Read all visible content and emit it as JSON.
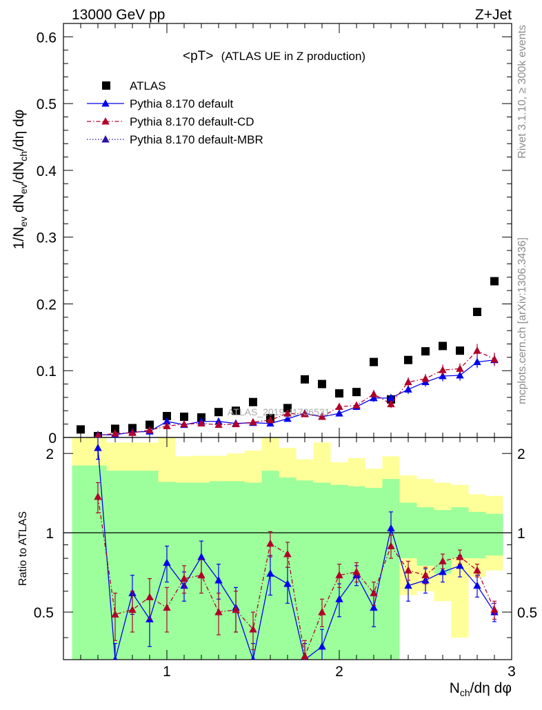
{
  "header": {
    "left_title": "13000 GeV pp",
    "right_title": "Z+Jet"
  },
  "side_labels": {
    "rivet": "Rivet 3.1.10, ≥ 300k events",
    "mcplots": "mcplots.cern.ch [arXiv:1306.3436]"
  },
  "watermark": "ATLAS_2019_I1736531",
  "chart_data": [
    {
      "type": "scatter",
      "panel": "main",
      "title": "<pT> (ATLAS UE in Z production)",
      "title_main": "<pT>",
      "title_sub": "(ATLAS UE in Z production)",
      "ylabel": "1/N_ev dN_ev/dN_ch/dη dφ",
      "xlim": [
        0.4,
        3.0
      ],
      "ylim": [
        0,
        0.62
      ],
      "yticks": [
        0,
        0.1,
        0.2,
        0.3,
        0.4,
        0.5,
        0.6
      ],
      "ytick_labels": [
        "0",
        "0.1",
        "0.2",
        "0.3",
        "0.4",
        "0.5",
        "0.6"
      ],
      "legend": [
        "ATLAS",
        "Pythia 8.170 default",
        "Pythia 8.170 default-CD",
        "Pythia 8.170 default-MBR"
      ],
      "x": [
        0.5,
        0.6,
        0.7,
        0.8,
        0.9,
        1.0,
        1.1,
        1.2,
        1.3,
        1.4,
        1.5,
        1.6,
        1.7,
        1.8,
        1.9,
        2.0,
        2.1,
        2.2,
        2.3,
        2.4,
        2.5,
        2.6,
        2.7,
        2.8,
        2.9
      ],
      "series": [
        {
          "name": "ATLAS",
          "color": "#000000",
          "marker": "square",
          "values": [
            0.012,
            0.002,
            0.013,
            0.014,
            0.019,
            0.032,
            0.031,
            0.03,
            0.038,
            0.04,
            0.053,
            0.029,
            0.044,
            0.087,
            0.08,
            0.066,
            0.068,
            0.113,
            0.057,
            0.116,
            0.129,
            0.137,
            0.13,
            0.188,
            0.234
          ]
        },
        {
          "name": "Pythia 8.170 default",
          "color": "#0000ee",
          "marker": "triangle",
          "line": "solid",
          "values": [
            null,
            0.004,
            0.004,
            0.008,
            0.009,
            0.024,
            0.019,
            0.024,
            0.024,
            0.021,
            0.022,
            0.021,
            0.028,
            0.036,
            0.031,
            0.036,
            0.046,
            0.059,
            0.059,
            0.072,
            0.083,
            0.092,
            0.093,
            0.113,
            0.116
          ]
        },
        {
          "name": "Pythia 8.170 default-CD",
          "color": "#b0002a",
          "marker": "triangle",
          "line": "dashdot",
          "values": [
            null,
            0.003,
            0.006,
            0.007,
            0.011,
            0.017,
            0.02,
            0.021,
            0.019,
            0.02,
            0.023,
            0.026,
            0.036,
            0.035,
            0.031,
            0.046,
            0.048,
            0.065,
            0.05,
            0.083,
            0.088,
            0.101,
            0.103,
            0.13,
            0.117
          ]
        },
        {
          "name": "Pythia 8.170 default-MBR",
          "color": "#2a10a8",
          "marker": "triangle",
          "line": "dotted",
          "values": []
        }
      ],
      "errors": {
        "Pythia 8.170 default": [
          null,
          0.002,
          0.002,
          0.002,
          0.002,
          0.004,
          0.003,
          0.003,
          0.003,
          0.003,
          0.003,
          0.003,
          0.003,
          0.004,
          0.004,
          0.004,
          0.005,
          0.006,
          0.006,
          0.007,
          0.007,
          0.008,
          0.008,
          0.009,
          0.009
        ],
        "Pythia 8.170 default-CD": [
          null,
          0.002,
          0.002,
          0.002,
          0.002,
          0.003,
          0.003,
          0.003,
          0.003,
          0.003,
          0.003,
          0.003,
          0.003,
          0.004,
          0.004,
          0.005,
          0.005,
          0.006,
          0.006,
          0.007,
          0.007,
          0.008,
          0.008,
          0.01,
          0.01
        ]
      }
    },
    {
      "type": "line",
      "panel": "ratio",
      "ylabel": "Ratio to ATLAS",
      "xlabel": "N_ch/dη dφ",
      "xlim": [
        0.4,
        3.0
      ],
      "ylim": [
        0.33,
        2.3
      ],
      "yticks": [
        0.5,
        1,
        2
      ],
      "ytick_labels": [
        "0.5",
        "1",
        "2"
      ],
      "xticks": [
        1,
        2,
        3
      ],
      "xtick_labels": [
        "1",
        "2",
        "3"
      ],
      "x": [
        0.5,
        0.6,
        0.7,
        0.8,
        0.9,
        1.0,
        1.1,
        1.2,
        1.3,
        1.4,
        1.5,
        1.6,
        1.7,
        1.8,
        1.9,
        2.0,
        2.1,
        2.2,
        2.3,
        2.4,
        2.5,
        2.6,
        2.7,
        2.8,
        2.9
      ],
      "band_edges": [
        0.45,
        0.55,
        0.65,
        0.75,
        0.85,
        0.95,
        1.05,
        1.15,
        1.25,
        1.35,
        1.45,
        1.55,
        1.65,
        1.75,
        1.85,
        1.95,
        2.05,
        2.15,
        2.25,
        2.35,
        2.45,
        2.55,
        2.65,
        2.75,
        2.85,
        2.95
      ],
      "bands": [
        {
          "name": "ATLAS total uncertainty",
          "color": "#ffff99",
          "lower": [
            0.33,
            0.33,
            0.33,
            0.33,
            0.33,
            0.33,
            0.55,
            0.55,
            0.55,
            0.45,
            0.45,
            0.33,
            0.33,
            0.42,
            0.38,
            0.52,
            0.48,
            0.5,
            0.33,
            0.58,
            0.6,
            0.55,
            0.4,
            0.68,
            0.72
          ],
          "upper": [
            2.3,
            2.3,
            2.2,
            2.2,
            2.2,
            2.3,
            1.95,
            1.96,
            1.96,
            2.0,
            2.05,
            2.3,
            2.1,
            1.9,
            2.2,
            1.85,
            1.92,
            1.75,
            1.95,
            1.65,
            1.6,
            1.55,
            1.52,
            1.4,
            1.38
          ]
        },
        {
          "name": "ATLAS stat. uncertainty",
          "color": "#9cff9c",
          "lower": [
            0.33,
            0.33,
            0.33,
            0.33,
            0.33,
            0.33,
            0.33,
            0.33,
            0.33,
            0.33,
            0.33,
            0.33,
            0.33,
            0.33,
            0.33,
            0.33,
            0.33,
            0.33,
            0.33,
            0.8,
            0.75,
            0.7,
            0.8,
            0.8,
            0.82
          ],
          "upper": [
            1.8,
            1.8,
            1.72,
            1.72,
            1.72,
            1.56,
            1.55,
            1.55,
            1.57,
            1.57,
            1.55,
            1.72,
            1.62,
            1.58,
            1.55,
            1.52,
            1.5,
            1.48,
            1.6,
            1.3,
            1.25,
            1.22,
            1.25,
            1.2,
            1.18
          ]
        }
      ],
      "reference_line": 1,
      "series": [
        {
          "name": "Pythia 8.170 default",
          "color": "#0000ee",
          "line": "solid",
          "values": [
            null,
            2.1,
            0.33,
            0.59,
            0.47,
            0.77,
            0.63,
            0.81,
            0.66,
            0.52,
            0.33,
            0.7,
            0.64,
            0.33,
            0.37,
            0.56,
            0.69,
            0.52,
            1.04,
            0.63,
            0.66,
            0.71,
            0.75,
            0.63,
            0.5
          ],
          "errors": [
            null,
            0.2,
            0.05,
            0.1,
            0.1,
            0.12,
            0.08,
            0.12,
            0.1,
            0.1,
            0.05,
            0.12,
            0.1,
            0.05,
            0.06,
            0.08,
            0.06,
            0.08,
            0.16,
            0.08,
            0.07,
            0.06,
            0.07,
            0.06,
            0.04
          ]
        },
        {
          "name": "Pythia 8.170 default-CD",
          "color": "#b0002a",
          "line": "dashdot",
          "values": [
            null,
            1.37,
            0.49,
            0.51,
            0.57,
            0.52,
            0.67,
            0.69,
            0.5,
            0.51,
            0.43,
            0.91,
            0.83,
            0.34,
            0.5,
            0.69,
            0.71,
            0.59,
            0.89,
            0.72,
            0.69,
            0.78,
            0.81,
            0.72,
            0.51
          ],
          "errors": [
            null,
            0.18,
            0.1,
            0.09,
            0.1,
            0.1,
            0.08,
            0.1,
            0.09,
            0.09,
            0.07,
            0.1,
            0.09,
            0.05,
            0.06,
            0.07,
            0.06,
            0.06,
            0.09,
            0.06,
            0.05,
            0.05,
            0.05,
            0.04,
            0.04
          ]
        }
      ]
    }
  ]
}
